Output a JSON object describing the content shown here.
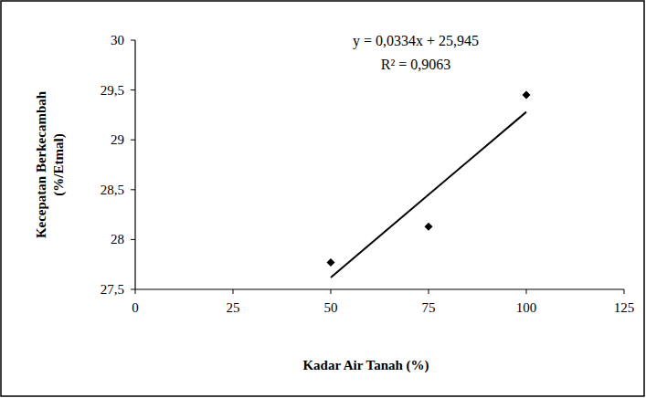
{
  "chart_data": {
    "type": "scatter",
    "x_label": "Kadar Air Tanah (%)",
    "y_label": [
      "Kecepatan Berkecambah",
      "(%/Etmal)"
    ],
    "annotations": [
      "y = 0,0334x + 25,945",
      "R² = 0,9063"
    ],
    "xlim": [
      0,
      125
    ],
    "xticks": [
      0,
      25,
      50,
      75,
      100,
      125
    ],
    "ylim": [
      27.5,
      30
    ],
    "yticks": [
      {
        "value": 27.5,
        "label": "27,5"
      },
      28,
      {
        "value": 28.5,
        "label": "28,5"
      },
      29,
      {
        "value": 29.5,
        "label": "29,5"
      },
      30
    ],
    "grid": false,
    "series": [
      {
        "type": "scatter",
        "marker": "diamond",
        "color": "#000000",
        "x": [
          50,
          75,
          100
        ],
        "values": [
          27.77,
          28.13,
          29.45
        ]
      },
      {
        "type": "line",
        "line_style": "solid",
        "color": "#000000",
        "x": [
          50,
          100
        ],
        "values": [
          27.62,
          29.28
        ]
      }
    ]
  }
}
